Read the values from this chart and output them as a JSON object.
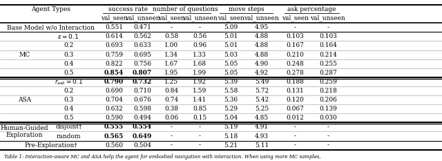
{
  "rows": [
    {
      "group": "",
      "label": "Base Model w/o Interaction",
      "vals": [
        "0.551",
        "0.471",
        "-",
        "-",
        "5.09",
        "4.95",
        "-",
        "-"
      ],
      "bold": [],
      "span_label": true
    },
    {
      "group": "MC",
      "label": "ε = 0.1",
      "vals": [
        "0.614",
        "0.562",
        "0.58",
        "0.56",
        "5.01",
        "4.88",
        "0.103",
        "0.103"
      ],
      "bold": []
    },
    {
      "group": "MC",
      "label": "0.2",
      "vals": [
        "0.693",
        "0.633",
        "1.00",
        "0.96",
        "5.01",
        "4.88",
        "0.167",
        "0.164"
      ],
      "bold": []
    },
    {
      "group": "MC",
      "label": "0.3",
      "vals": [
        "0.759",
        "0.695",
        "1.34",
        "1.33",
        "5.03",
        "4.88",
        "0.210",
        "0.214"
      ],
      "bold": []
    },
    {
      "group": "MC",
      "label": "0.4",
      "vals": [
        "0.822",
        "0.756",
        "1.67",
        "1.68",
        "5.05",
        "4.90",
        "0.248",
        "0.255"
      ],
      "bold": []
    },
    {
      "group": "MC",
      "label": "0.5",
      "vals": [
        "0.854",
        "0.807",
        "1.95",
        "1.99",
        "5.05",
        "4.92",
        "0.278",
        "0.287"
      ],
      "bold": [
        0,
        1
      ]
    },
    {
      "group": "ASA",
      "label": "r_ask = 0.1",
      "vals": [
        "0.790",
        "0.732",
        "1.25",
        "1.92",
        "5.39",
        "5.49",
        "0.188",
        "0.259"
      ],
      "bold": [
        0,
        1
      ]
    },
    {
      "group": "ASA",
      "label": "0.2",
      "vals": [
        "0.690",
        "0.710",
        "0.84",
        "1.59",
        "5.58",
        "5.72",
        "0.131",
        "0.218"
      ],
      "bold": []
    },
    {
      "group": "ASA",
      "label": "0.3",
      "vals": [
        "0.704",
        "0.676",
        "0.74",
        "1.41",
        "5.36",
        "5.42",
        "0.120",
        "0.206"
      ],
      "bold": []
    },
    {
      "group": "ASA",
      "label": "0.4",
      "vals": [
        "0.632",
        "0.598",
        "0.38",
        "0.85",
        "5.29",
        "5.25",
        "0.067",
        "0.139"
      ],
      "bold": []
    },
    {
      "group": "ASA",
      "label": "0.5",
      "vals": [
        "0.590",
        "0.494",
        "0.06",
        "0.15",
        "5.04",
        "4.85",
        "0.012",
        "0.030"
      ],
      "bold": []
    },
    {
      "group": "Human-Guided\nExploration",
      "label": "disjoint†",
      "vals": [
        "0.555",
        "0.554",
        "-",
        "-",
        "5.19",
        "4.91",
        "-",
        "-"
      ],
      "bold": [
        0,
        1
      ]
    },
    {
      "group": "Human-Guided\nExploration",
      "label": "random",
      "vals": [
        "0.565",
        "0.649",
        "-",
        "-",
        "5.18",
        "4.93",
        "-",
        "-"
      ],
      "bold": [
        0,
        1
      ]
    },
    {
      "group": "",
      "label": "Pre-Exploration†",
      "vals": [
        "0.560",
        "0.504",
        "-",
        "-",
        "5.21",
        "5.11",
        "-",
        "-"
      ],
      "bold": [],
      "span_label": true
    }
  ],
  "background_color": "#ffffff",
  "font_size": 6.5,
  "header_font_size": 6.5,
  "caption": "Table 1: Interaction-aware MC and ASA help the agent for embodied navigation with interaction. When using more MC samples,"
}
